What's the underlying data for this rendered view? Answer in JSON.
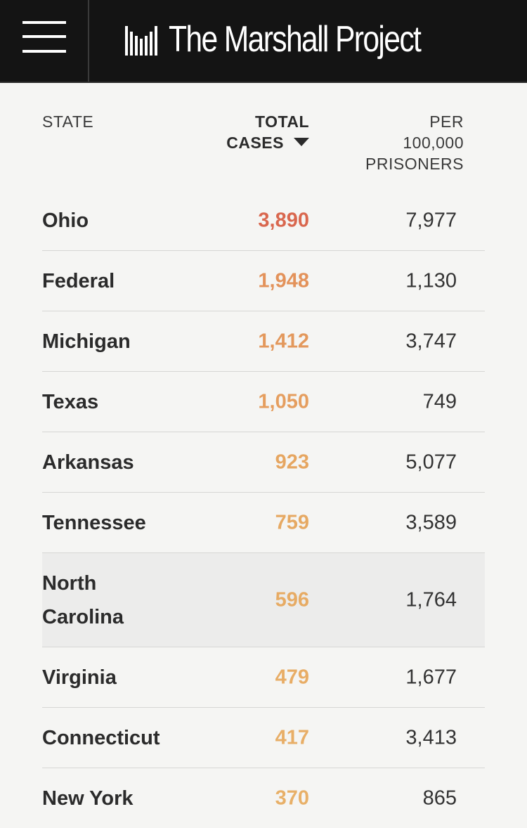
{
  "header": {
    "brand_name": "The Marshall Project",
    "menu_icon": "hamburger-menu-icon",
    "logo_icon": "marshall-bars-logo-icon"
  },
  "table": {
    "columns": {
      "state": "STATE",
      "total_line1": "TOTAL",
      "total_line2": "CASES",
      "per_line1": "PER",
      "per_line2": "100,000",
      "per_line3": "PRISONERS"
    },
    "sort_icon": "sort-descending-caret-icon",
    "rows": [
      {
        "state": "Ohio",
        "total": "3,890",
        "per": "7,977",
        "color": "#d9674e"
      },
      {
        "state": "Federal",
        "total": "1,948",
        "per": "1,130",
        "color": "#e3925a"
      },
      {
        "state": "Michigan",
        "total": "1,412",
        "per": "3,747",
        "color": "#e3985c"
      },
      {
        "state": "Texas",
        "total": "1,050",
        "per": "749",
        "color": "#e59e5f"
      },
      {
        "state": "Arkansas",
        "total": "923",
        "per": "5,077",
        "color": "#e6a661"
      },
      {
        "state": "Tennessee",
        "total": "759",
        "per": "3,589",
        "color": "#e6a963"
      },
      {
        "state_line1": "North",
        "state_line2": "Carolina",
        "total": "596",
        "per": "1,764",
        "color": "#e7ab64"
      },
      {
        "state": "Virginia",
        "total": "479",
        "per": "1,677",
        "color": "#e8ad66"
      },
      {
        "state": "Connecticut",
        "total": "417",
        "per": "3,413",
        "color": "#e8ae67"
      },
      {
        "state": "New York",
        "total": "370",
        "per": "865",
        "color": "#e8b068"
      }
    ]
  }
}
